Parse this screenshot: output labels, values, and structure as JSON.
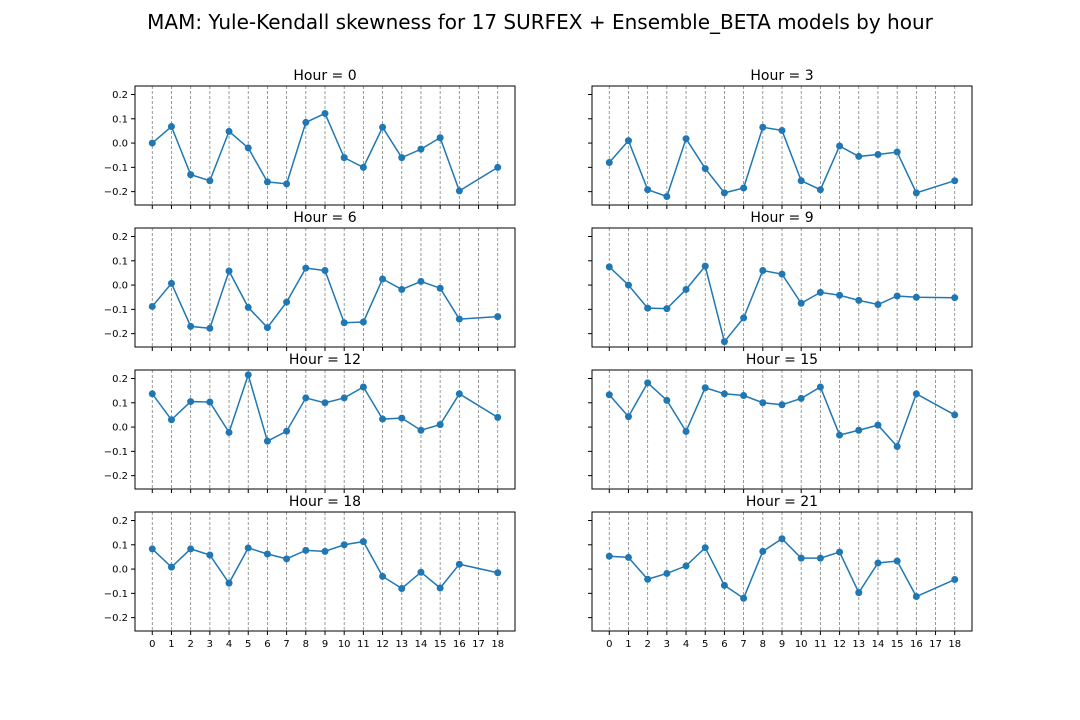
{
  "figure": {
    "title": "MAM: Yule-Kendall skewness for 17 SURFEX + Ensemble_BETA models by hour"
  },
  "chart_data": [
    {
      "type": "line",
      "title": "Hour = 0",
      "x": [
        0,
        1,
        2,
        3,
        4,
        5,
        6,
        7,
        8,
        9,
        10,
        11,
        12,
        13,
        14,
        15,
        16,
        18
      ],
      "y": [
        0.0,
        0.068,
        -0.13,
        -0.155,
        0.048,
        -0.02,
        -0.16,
        -0.168,
        0.085,
        0.122,
        -0.06,
        -0.1,
        0.065,
        -0.06,
        -0.025,
        0.022,
        -0.197,
        -0.1
      ],
      "xlim": [
        -0.9,
        18.9
      ],
      "ylim": [
        -0.255,
        0.235
      ],
      "yticks": [
        -0.2,
        -0.1,
        0.0,
        0.1,
        0.2
      ],
      "yticklabels": [
        "−0.2",
        "−0.1",
        "0.0",
        "0.1",
        "0.2"
      ],
      "xticks": [
        0,
        1,
        2,
        3,
        4,
        5,
        6,
        7,
        8,
        9,
        10,
        11,
        12,
        13,
        14,
        15,
        16,
        17,
        18
      ],
      "xticklabels": [],
      "grid": "vertical-dashed",
      "color": "#1f77b4",
      "marker": "circle"
    },
    {
      "type": "line",
      "title": "Hour = 3",
      "x": [
        0,
        1,
        2,
        3,
        4,
        5,
        6,
        7,
        8,
        9,
        10,
        11,
        12,
        13,
        14,
        15,
        16,
        18
      ],
      "y": [
        -0.08,
        0.01,
        -0.192,
        -0.22,
        0.018,
        -0.105,
        -0.205,
        -0.185,
        0.065,
        0.052,
        -0.155,
        -0.192,
        -0.012,
        -0.055,
        -0.047,
        -0.037,
        -0.205,
        -0.155
      ],
      "xlim": [
        -0.9,
        18.9
      ],
      "ylim": [
        -0.255,
        0.235
      ],
      "yticks": [
        -0.2,
        -0.1,
        0.0,
        0.1,
        0.2
      ],
      "yticklabels": [],
      "xticks": [
        0,
        1,
        2,
        3,
        4,
        5,
        6,
        7,
        8,
        9,
        10,
        11,
        12,
        13,
        14,
        15,
        16,
        17,
        18
      ],
      "xticklabels": [],
      "grid": "vertical-dashed",
      "color": "#1f77b4",
      "marker": "circle"
    },
    {
      "type": "line",
      "title": "Hour = 6",
      "x": [
        0,
        1,
        2,
        3,
        4,
        5,
        6,
        7,
        8,
        9,
        10,
        11,
        12,
        13,
        14,
        15,
        16,
        18
      ],
      "y": [
        -0.088,
        0.007,
        -0.17,
        -0.178,
        0.058,
        -0.092,
        -0.175,
        -0.07,
        0.07,
        0.06,
        -0.155,
        -0.152,
        0.025,
        -0.018,
        0.015,
        -0.013,
        -0.14,
        -0.13
      ],
      "xlim": [
        -0.9,
        18.9
      ],
      "ylim": [
        -0.255,
        0.235
      ],
      "yticks": [
        -0.2,
        -0.1,
        0.0,
        0.1,
        0.2
      ],
      "yticklabels": [
        "−0.2",
        "−0.1",
        "0.0",
        "0.1",
        "0.2"
      ],
      "xticks": [
        0,
        1,
        2,
        3,
        4,
        5,
        6,
        7,
        8,
        9,
        10,
        11,
        12,
        13,
        14,
        15,
        16,
        17,
        18
      ],
      "xticklabels": [],
      "grid": "vertical-dashed",
      "color": "#1f77b4",
      "marker": "circle"
    },
    {
      "type": "line",
      "title": "Hour = 9",
      "x": [
        0,
        1,
        2,
        3,
        4,
        5,
        6,
        7,
        8,
        9,
        10,
        11,
        12,
        13,
        14,
        15,
        16,
        18
      ],
      "y": [
        0.075,
        0.0,
        -0.095,
        -0.097,
        -0.018,
        0.078,
        -0.233,
        -0.135,
        0.06,
        0.045,
        -0.075,
        -0.03,
        -0.042,
        -0.063,
        -0.08,
        -0.045,
        -0.05,
        -0.052
      ],
      "xlim": [
        -0.9,
        18.9
      ],
      "ylim": [
        -0.255,
        0.235
      ],
      "yticks": [
        -0.2,
        -0.1,
        0.0,
        0.1,
        0.2
      ],
      "yticklabels": [],
      "xticks": [
        0,
        1,
        2,
        3,
        4,
        5,
        6,
        7,
        8,
        9,
        10,
        11,
        12,
        13,
        14,
        15,
        16,
        17,
        18
      ],
      "xticklabels": [],
      "grid": "vertical-dashed",
      "color": "#1f77b4",
      "marker": "circle"
    },
    {
      "type": "line",
      "title": "Hour = 12",
      "x": [
        0,
        1,
        2,
        3,
        4,
        5,
        6,
        7,
        8,
        9,
        10,
        11,
        12,
        13,
        14,
        15,
        16,
        18
      ],
      "y": [
        0.137,
        0.03,
        0.105,
        0.103,
        -0.022,
        0.215,
        -0.058,
        -0.017,
        0.12,
        0.1,
        0.12,
        0.165,
        0.033,
        0.037,
        -0.013,
        0.01,
        0.137,
        0.04
      ],
      "xlim": [
        -0.9,
        18.9
      ],
      "ylim": [
        -0.255,
        0.235
      ],
      "yticks": [
        -0.2,
        -0.1,
        0.0,
        0.1,
        0.2
      ],
      "yticklabels": [
        "−0.2",
        "−0.1",
        "0.0",
        "0.1",
        "0.2"
      ],
      "xticks": [
        0,
        1,
        2,
        3,
        4,
        5,
        6,
        7,
        8,
        9,
        10,
        11,
        12,
        13,
        14,
        15,
        16,
        17,
        18
      ],
      "xticklabels": [],
      "grid": "vertical-dashed",
      "color": "#1f77b4",
      "marker": "circle"
    },
    {
      "type": "line",
      "title": "Hour = 15",
      "x": [
        0,
        1,
        2,
        3,
        4,
        5,
        6,
        7,
        8,
        9,
        10,
        11,
        12,
        13,
        14,
        15,
        16,
        18
      ],
      "y": [
        0.133,
        0.043,
        0.182,
        0.11,
        -0.018,
        0.162,
        0.137,
        0.13,
        0.1,
        0.092,
        0.118,
        0.165,
        -0.033,
        -0.013,
        0.008,
        -0.08,
        0.137,
        0.05
      ],
      "xlim": [
        -0.9,
        18.9
      ],
      "ylim": [
        -0.255,
        0.235
      ],
      "yticks": [
        -0.2,
        -0.1,
        0.0,
        0.1,
        0.2
      ],
      "yticklabels": [],
      "xticks": [
        0,
        1,
        2,
        3,
        4,
        5,
        6,
        7,
        8,
        9,
        10,
        11,
        12,
        13,
        14,
        15,
        16,
        17,
        18
      ],
      "xticklabels": [],
      "grid": "vertical-dashed",
      "color": "#1f77b4",
      "marker": "circle"
    },
    {
      "type": "line",
      "title": "Hour = 18",
      "x": [
        0,
        1,
        2,
        3,
        4,
        5,
        6,
        7,
        8,
        9,
        10,
        11,
        12,
        13,
        14,
        15,
        16,
        18
      ],
      "y": [
        0.083,
        0.008,
        0.083,
        0.058,
        -0.058,
        0.087,
        0.062,
        0.042,
        0.077,
        0.073,
        0.1,
        0.113,
        -0.03,
        -0.08,
        -0.013,
        -0.078,
        0.02,
        -0.015
      ],
      "xlim": [
        -0.9,
        18.9
      ],
      "ylim": [
        -0.255,
        0.235
      ],
      "yticks": [
        -0.2,
        -0.1,
        0.0,
        0.1,
        0.2
      ],
      "yticklabels": [
        "−0.2",
        "−0.1",
        "0.0",
        "0.1",
        "0.2"
      ],
      "xticks": [
        0,
        1,
        2,
        3,
        4,
        5,
        6,
        7,
        8,
        9,
        10,
        11,
        12,
        13,
        14,
        15,
        16,
        17,
        18
      ],
      "xticklabels": [
        "0",
        "1",
        "2",
        "3",
        "4",
        "5",
        "6",
        "7",
        "8",
        "9",
        "10",
        "11",
        "12",
        "13",
        "14",
        "15",
        "16",
        "17",
        "18"
      ],
      "grid": "vertical-dashed",
      "color": "#1f77b4",
      "marker": "circle"
    },
    {
      "type": "line",
      "title": "Hour = 21",
      "x": [
        0,
        1,
        2,
        3,
        4,
        5,
        6,
        7,
        8,
        9,
        10,
        11,
        12,
        13,
        14,
        15,
        16,
        18
      ],
      "y": [
        0.053,
        0.048,
        -0.042,
        -0.018,
        0.013,
        0.088,
        -0.067,
        -0.12,
        0.073,
        0.125,
        0.045,
        0.045,
        0.07,
        -0.097,
        0.025,
        0.033,
        -0.113,
        -0.043
      ],
      "xlim": [
        -0.9,
        18.9
      ],
      "ylim": [
        -0.255,
        0.235
      ],
      "yticks": [
        -0.2,
        -0.1,
        0.0,
        0.1,
        0.2
      ],
      "yticklabels": [],
      "xticks": [
        0,
        1,
        2,
        3,
        4,
        5,
        6,
        7,
        8,
        9,
        10,
        11,
        12,
        13,
        14,
        15,
        16,
        17,
        18
      ],
      "xticklabels": [
        "0",
        "1",
        "2",
        "3",
        "4",
        "5",
        "6",
        "7",
        "8",
        "9",
        "10",
        "11",
        "12",
        "13",
        "14",
        "15",
        "16",
        "17",
        "18"
      ],
      "grid": "vertical-dashed",
      "color": "#1f77b4",
      "marker": "circle"
    }
  ]
}
